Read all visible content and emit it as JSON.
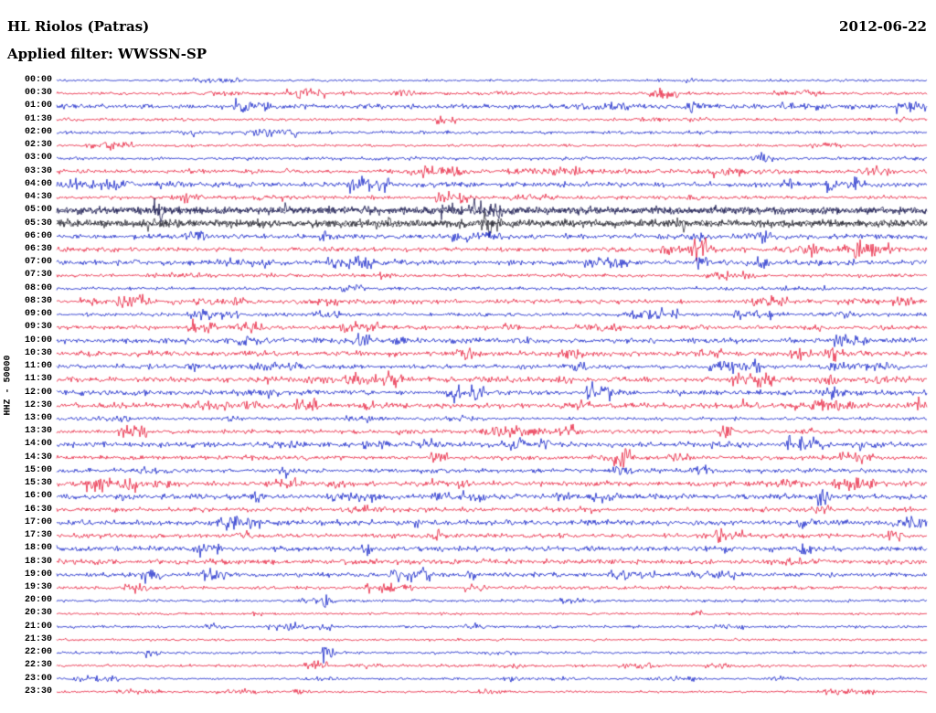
{
  "header": {
    "title": "HL Riolos (Patras)",
    "date": "2012-06-22",
    "filter_label": "Applied filter: WWSSN-SP"
  },
  "axis": {
    "y_label": "HHZ - 50000"
  },
  "chart_data": {
    "type": "line",
    "subtype": "helicorder-dayplot",
    "station": "HL Riolos (Patras)",
    "channel": "HHZ",
    "scale": 50000,
    "date": "2012-06-22",
    "filter": "WWSSN-SP",
    "interval_minutes": 30,
    "grid": false,
    "palette": {
      "blue": "#0013c4",
      "red": "#e60d2e"
    },
    "rows": [
      {
        "time": "00:00",
        "color": "blue",
        "noise": 1.0,
        "events": []
      },
      {
        "time": "00:30",
        "color": "red",
        "noise": 1.3,
        "events": [
          [
            0.19,
            2.5,
            5
          ],
          [
            0.28,
            2.5,
            5
          ],
          [
            0.4,
            2.5,
            5
          ],
          [
            0.51,
            2,
            4
          ]
        ]
      },
      {
        "time": "01:00",
        "color": "blue",
        "noise": 2.0,
        "events": [
          [
            0.73,
            6,
            3
          ]
        ]
      },
      {
        "time": "01:30",
        "color": "red",
        "noise": 1.2,
        "events": [
          [
            0.68,
            2,
            4
          ]
        ]
      },
      {
        "time": "02:00",
        "color": "blue",
        "noise": 1.4,
        "events": [
          [
            0.16,
            5,
            3
          ]
        ]
      },
      {
        "time": "02:30",
        "color": "red",
        "noise": 1.2,
        "events": []
      },
      {
        "time": "03:00",
        "color": "blue",
        "noise": 1.4,
        "events": [
          [
            0.81,
            5,
            3
          ]
        ]
      },
      {
        "time": "03:30",
        "color": "red",
        "noise": 1.8,
        "events": [
          [
            0.45,
            3,
            6
          ],
          [
            0.55,
            2.5,
            8
          ],
          [
            0.63,
            2.5,
            6
          ],
          [
            0.79,
            3,
            5
          ],
          [
            0.94,
            5,
            4
          ]
        ]
      },
      {
        "time": "04:00",
        "color": "blue",
        "noise": 2.2,
        "events": [
          [
            0.03,
            4,
            6
          ],
          [
            0.07,
            4,
            5
          ],
          [
            0.13,
            3,
            5
          ],
          [
            0.84,
            4,
            3
          ]
        ]
      },
      {
        "time": "04:30",
        "color": "red",
        "noise": 1.5,
        "events": [
          [
            0.15,
            4,
            4
          ],
          [
            0.45,
            5,
            5
          ]
        ]
      },
      {
        "time": "05:00",
        "color": "#11114a",
        "noise": 3.2,
        "events": []
      },
      {
        "time": "05:30",
        "color": "#23232d",
        "noise": 3.2,
        "events": []
      },
      {
        "time": "06:00",
        "color": "blue",
        "noise": 2.2,
        "events": [
          [
            0.16,
            4,
            4
          ],
          [
            0.31,
            4,
            3
          ],
          [
            0.74,
            5,
            3
          ],
          [
            0.81,
            8,
            3
          ]
        ]
      },
      {
        "time": "06:30",
        "color": "red",
        "noise": 2.0,
        "events": [
          [
            0.74,
            12,
            3
          ],
          [
            0.87,
            5,
            4
          ],
          [
            0.93,
            9,
            4
          ]
        ]
      },
      {
        "time": "07:00",
        "color": "blue",
        "noise": 2.2,
        "events": [
          [
            0.74,
            9,
            2
          ],
          [
            0.81,
            6,
            3
          ]
        ]
      },
      {
        "time": "07:30",
        "color": "red",
        "noise": 1.4,
        "events": []
      },
      {
        "time": "08:00",
        "color": "blue",
        "noise": 1.4,
        "events": [
          [
            0.88,
            2,
            4
          ]
        ]
      },
      {
        "time": "08:30",
        "color": "red",
        "noise": 1.8,
        "events": [
          [
            0.92,
            4,
            5
          ],
          [
            0.97,
            5,
            4
          ]
        ]
      },
      {
        "time": "09:00",
        "color": "blue",
        "noise": 1.5,
        "events": [
          [
            0.66,
            4,
            3
          ]
        ]
      },
      {
        "time": "09:30",
        "color": "red",
        "noise": 1.8,
        "events": [
          [
            0.22,
            4,
            6
          ],
          [
            0.87,
            3,
            4
          ]
        ]
      },
      {
        "time": "10:00",
        "color": "blue",
        "noise": 2.2,
        "events": [
          [
            0.22,
            5,
            4
          ],
          [
            0.35,
            6,
            3
          ],
          [
            0.54,
            3,
            4
          ]
        ]
      },
      {
        "time": "10:30",
        "color": "red",
        "noise": 2.2,
        "events": [
          [
            0.47,
            4,
            4
          ],
          [
            0.59,
            4,
            4
          ],
          [
            0.89,
            6,
            3
          ]
        ]
      },
      {
        "time": "11:00",
        "color": "blue",
        "noise": 1.9,
        "events": [
          [
            0.6,
            4,
            3
          ],
          [
            0.89,
            7,
            3
          ],
          [
            0.95,
            4,
            3
          ]
        ]
      },
      {
        "time": "11:30",
        "color": "red",
        "noise": 2.2,
        "events": [
          [
            0.39,
            4,
            3
          ],
          [
            0.89,
            6,
            3
          ],
          [
            0.96,
            4,
            3
          ]
        ]
      },
      {
        "time": "12:00",
        "color": "blue",
        "noise": 2.2,
        "events": [
          [
            0.24,
            5,
            4
          ],
          [
            0.89,
            5,
            3
          ]
        ]
      },
      {
        "time": "12:30",
        "color": "red",
        "noise": 2.2,
        "events": [
          [
            0.22,
            5,
            4
          ],
          [
            0.79,
            4,
            3
          ],
          [
            0.99,
            5,
            3
          ]
        ]
      },
      {
        "time": "13:00",
        "color": "blue",
        "noise": 1.4,
        "events": []
      },
      {
        "time": "13:30",
        "color": "red",
        "noise": 1.8,
        "events": [
          [
            0.52,
            5,
            9
          ]
        ]
      },
      {
        "time": "14:00",
        "color": "blue",
        "noise": 2.2,
        "events": [
          [
            0.26,
            4,
            5
          ],
          [
            0.43,
            4,
            5
          ],
          [
            0.53,
            5,
            4
          ],
          [
            0.92,
            4,
            3
          ]
        ]
      },
      {
        "time": "14:30",
        "color": "red",
        "noise": 1.8,
        "events": [
          [
            0.65,
            6,
            3
          ]
        ]
      },
      {
        "time": "15:00",
        "color": "blue",
        "noise": 1.9,
        "events": [
          [
            0.65,
            7,
            3
          ],
          [
            0.74,
            5,
            3
          ]
        ]
      },
      {
        "time": "15:30",
        "color": "red",
        "noise": 2.2,
        "events": [
          [
            0.12,
            5,
            3
          ],
          [
            0.32,
            4,
            3
          ],
          [
            0.83,
            6,
            3
          ],
          [
            0.93,
            6,
            3
          ]
        ]
      },
      {
        "time": "16:00",
        "color": "blue",
        "noise": 2.2,
        "events": [
          [
            0.08,
            4,
            3
          ],
          [
            0.23,
            4,
            3
          ],
          [
            0.58,
            5,
            3
          ],
          [
            0.88,
            9,
            3
          ]
        ]
      },
      {
        "time": "16:30",
        "color": "red",
        "noise": 1.9,
        "events": [
          [
            0.61,
            3,
            3
          ],
          [
            0.88,
            5,
            3
          ]
        ]
      },
      {
        "time": "17:00",
        "color": "blue",
        "noise": 2.2,
        "events": [
          [
            0.21,
            9,
            7
          ],
          [
            0.41,
            4,
            3
          ],
          [
            0.86,
            6,
            3
          ]
        ]
      },
      {
        "time": "17:30",
        "color": "red",
        "noise": 1.9,
        "events": [
          [
            0.22,
            4,
            3
          ],
          [
            0.96,
            7,
            3
          ]
        ]
      },
      {
        "time": "18:00",
        "color": "blue",
        "noise": 2.2,
        "events": [
          [
            0.36,
            6,
            3
          ],
          [
            0.86,
            5,
            3
          ]
        ]
      },
      {
        "time": "18:30",
        "color": "red",
        "noise": 2.2,
        "events": [
          [
            0.84,
            3,
            4
          ]
        ]
      },
      {
        "time": "19:00",
        "color": "blue",
        "noise": 1.9,
        "events": [
          [
            0.48,
            5,
            3
          ]
        ]
      },
      {
        "time": "19:30",
        "color": "red",
        "noise": 1.4,
        "events": [
          [
            0.09,
            7,
            3
          ]
        ]
      },
      {
        "time": "20:00",
        "color": "blue",
        "noise": 1.2,
        "events": [
          [
            0.31,
            12,
            2
          ]
        ]
      },
      {
        "time": "20:30",
        "color": "red",
        "noise": 1.0,
        "events": []
      },
      {
        "time": "21:00",
        "color": "blue",
        "noise": 1.2,
        "events": [
          [
            0.18,
            4,
            2
          ],
          [
            0.31,
            6,
            2
          ]
        ]
      },
      {
        "time": "21:30",
        "color": "red",
        "noise": 1.0,
        "events": []
      },
      {
        "time": "22:00",
        "color": "blue",
        "noise": 1.2,
        "events": [
          [
            0.31,
            14,
            2
          ]
        ]
      },
      {
        "time": "22:30",
        "color": "red",
        "noise": 1.2,
        "events": [
          [
            0.36,
            4,
            3
          ],
          [
            0.77,
            3,
            3
          ]
        ]
      },
      {
        "time": "23:00",
        "color": "blue",
        "noise": 1.0,
        "events": []
      },
      {
        "time": "23:30",
        "color": "red",
        "noise": 1.0,
        "events": [
          [
            0.28,
            4,
            2
          ]
        ]
      }
    ]
  }
}
